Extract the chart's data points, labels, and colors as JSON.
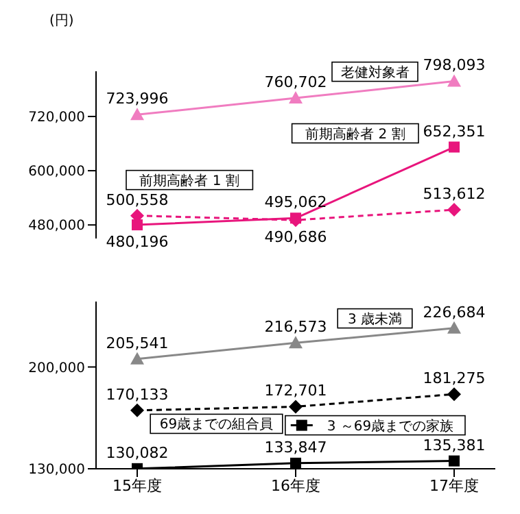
{
  "chart_data": [
    {
      "type": "line",
      "ylabel": "(円)",
      "categories": [
        null,
        null,
        null
      ],
      "ylim": [
        450000,
        820000
      ],
      "yticks": [
        {
          "value": 480000,
          "label": "480,000"
        },
        {
          "value": 600000,
          "label": "600,000"
        },
        {
          "value": 720000,
          "label": "720,000"
        }
      ],
      "tick_labels": "y",
      "series": [
        {
          "name": "老健対象者",
          "color": "#f07cc0",
          "values": [
            723996,
            760702,
            798093
          ],
          "value_labels": [
            "723,996",
            "760,702",
            "798,093"
          ],
          "marker": "triangle",
          "line_style": "solid"
        },
        {
          "name": "前期高齢者 2 割",
          "color": "#e8157c",
          "values": [
            480196,
            495062,
            652351
          ],
          "value_labels": [
            "480,196",
            "495,062",
            "652,351"
          ],
          "marker": "square",
          "line_style": "solid"
        },
        {
          "name": "前期高齢者 1 割",
          "color": "#e8157c",
          "values": [
            500558,
            490686,
            513612
          ],
          "value_labels": [
            "500,558",
            "490,686",
            "513,612"
          ],
          "marker": "diamond",
          "line_style": "dashed"
        }
      ]
    },
    {
      "type": "line",
      "categories": [
        "15年度",
        "16年度",
        "17年度"
      ],
      "ylim": [
        130000,
        245000
      ],
      "yticks": [
        {
          "value": 130000,
          "label": "130,000"
        },
        {
          "value": 200000,
          "label": "200,000"
        }
      ],
      "series": [
        {
          "name": "3 歳未満",
          "color": "#888888",
          "values": [
            205541,
            216573,
            226684
          ],
          "value_labels": [
            "205,541",
            "216,573",
            "226,684"
          ],
          "marker": "triangle",
          "line_style": "solid"
        },
        {
          "name": "69歳までの組合員",
          "color": "#000000",
          "values": [
            170133,
            172701,
            181275
          ],
          "value_labels": [
            "170,133",
            "172,701",
            "181,275"
          ],
          "marker": "diamond",
          "line_style": "dashed"
        },
        {
          "name": "3 ～69歳までの家族",
          "color": "#000000",
          "values": [
            130082,
            133847,
            135381
          ],
          "value_labels": [
            "130,082",
            "133,847",
            "135,381"
          ],
          "marker": "square",
          "line_style": "solid"
        }
      ]
    }
  ]
}
